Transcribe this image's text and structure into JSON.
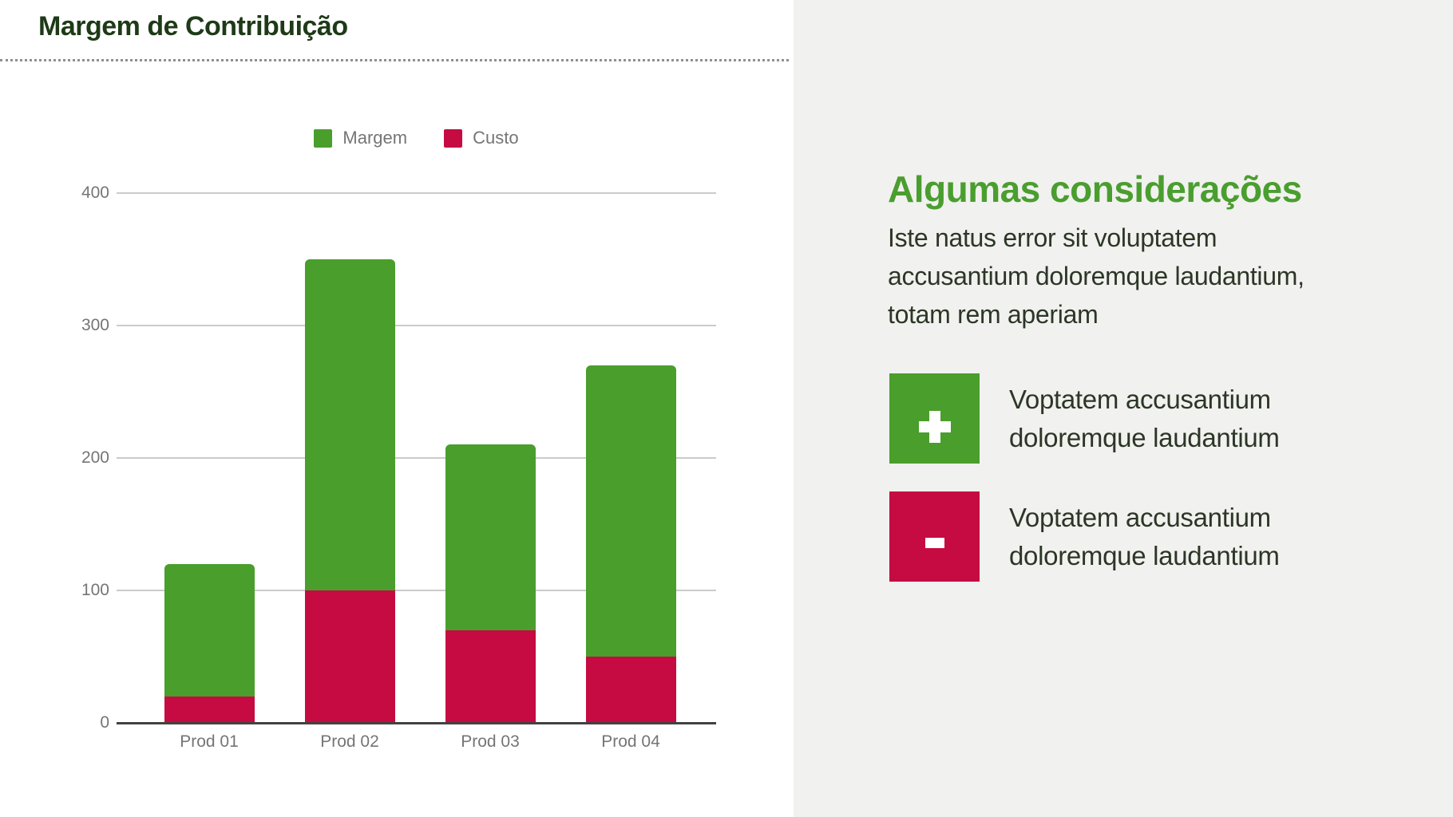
{
  "header": {
    "title": "Margem de Contribuição",
    "title_color": "#1e3a17"
  },
  "chart_data": {
    "type": "bar",
    "stacked": true,
    "categories": [
      "Prod 01",
      "Prod 02",
      "Prod 03",
      "Prod 04"
    ],
    "series": [
      {
        "name": "Custo",
        "color": "#c60a42",
        "values": [
          20,
          100,
          70,
          50
        ]
      },
      {
        "name": "Margem",
        "color": "#4a9e2c",
        "values": [
          100,
          250,
          140,
          220
        ]
      }
    ],
    "totals": [
      120,
      350,
      210,
      270
    ],
    "ylim": [
      0,
      400
    ],
    "yticks": [
      0,
      100,
      200,
      300,
      400
    ],
    "grid": true,
    "legend_position": "top",
    "legend_entries": [
      "Margem",
      "Custo"
    ]
  },
  "sidebar": {
    "heading": "Algumas considerações",
    "heading_color": "#4a9e2f",
    "paragraph": "Iste natus error sit voluptatem accusantium doloremque laudantium, totam rem aperiam",
    "features": [
      {
        "icon": "plus-icon",
        "color": "#4a9e2c",
        "text": "Voptatem accusantium doloremque laudantium"
      },
      {
        "icon": "minus-icon",
        "color": "#c60a42",
        "text": "Voptatem accusantium doloremque laudantium"
      }
    ]
  }
}
